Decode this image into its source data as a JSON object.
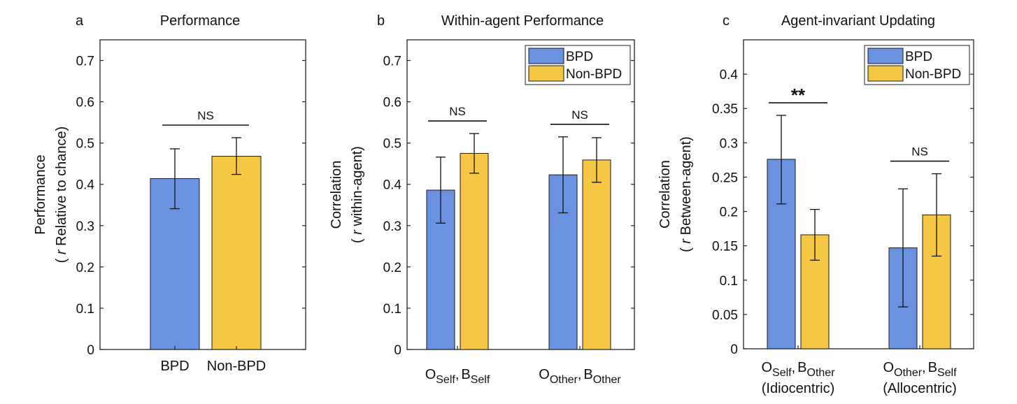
{
  "colors": {
    "bpd": "#6A92E0",
    "non_bpd": "#F6C744",
    "axis": "#222222"
  },
  "chart_data": [
    {
      "type": "bar",
      "panel_letter": "a",
      "title": "Performance",
      "ylabel_parts": [
        "( ",
        "r",
        " Relative to chance)"
      ],
      "ylabel_line1": "Performance",
      "ylim": [
        0,
        0.75
      ],
      "yticks": [
        0,
        0.1,
        0.2,
        0.3,
        0.4,
        0.5,
        0.6,
        0.7
      ],
      "legend": null,
      "groups": [
        {
          "label": "",
          "sublabel": "",
          "bars": [
            {
              "series": "BPD",
              "label": "BPD",
              "value": 0.414,
              "err_low": 0.341,
              "err_high": 0.486
            },
            {
              "series": "Non-BPD",
              "label": "Non-BPD",
              "value": 0.468,
              "err_low": 0.424,
              "err_high": 0.513
            }
          ],
          "significance": "NS"
        }
      ]
    },
    {
      "type": "bar",
      "panel_letter": "b",
      "title": "Within-agent Performance",
      "ylabel_line1": "Correlation",
      "ylabel_parts": [
        "( ",
        "r",
        " within-agent)"
      ],
      "ylim": [
        0,
        0.75
      ],
      "yticks": [
        0,
        0.1,
        0.2,
        0.3,
        0.4,
        0.5,
        0.6,
        0.7
      ],
      "legend": {
        "placement": "top-right",
        "entries": [
          "BPD",
          "Non-BPD"
        ]
      },
      "groups": [
        {
          "label": "O_Self, B_Self",
          "sublabel": "",
          "bars": [
            {
              "series": "BPD",
              "value": 0.386,
              "err_low": 0.306,
              "err_high": 0.466
            },
            {
              "series": "Non-BPD",
              "value": 0.475,
              "err_low": 0.427,
              "err_high": 0.523
            }
          ],
          "significance": "NS"
        },
        {
          "label": "O_Other, B_Other",
          "sublabel": "",
          "bars": [
            {
              "series": "BPD",
              "value": 0.423,
              "err_low": 0.331,
              "err_high": 0.515
            },
            {
              "series": "Non-BPD",
              "value": 0.459,
              "err_low": 0.405,
              "err_high": 0.513
            }
          ],
          "significance": "NS"
        }
      ]
    },
    {
      "type": "bar",
      "panel_letter": "c",
      "title": "Agent-invariant Updating",
      "ylabel_line1": "Correlation",
      "ylabel_parts": [
        "( ",
        "r",
        " Between-agent)"
      ],
      "ylim": [
        0,
        0.45
      ],
      "yticks": [
        0,
        0.05,
        0.1,
        0.15,
        0.2,
        0.25,
        0.3,
        0.35,
        0.4
      ],
      "legend": {
        "placement": "top-right",
        "entries": [
          "BPD",
          "Non-BPD"
        ]
      },
      "groups": [
        {
          "label": "O_Self, B_Other",
          "sublabel": "(Idiocentric)",
          "bars": [
            {
              "series": "BPD",
              "value": 0.276,
              "err_low": 0.211,
              "err_high": 0.34
            },
            {
              "series": "Non-BPD",
              "value": 0.166,
              "err_low": 0.129,
              "err_high": 0.203
            }
          ],
          "significance": "**"
        },
        {
          "label": "O_Other, B_Self",
          "sublabel": "(Allocentric)",
          "bars": [
            {
              "series": "BPD",
              "value": 0.147,
              "err_low": 0.061,
              "err_high": 0.233
            },
            {
              "series": "Non-BPD",
              "value": 0.195,
              "err_low": 0.135,
              "err_high": 0.255
            }
          ],
          "significance": "NS"
        }
      ]
    }
  ]
}
